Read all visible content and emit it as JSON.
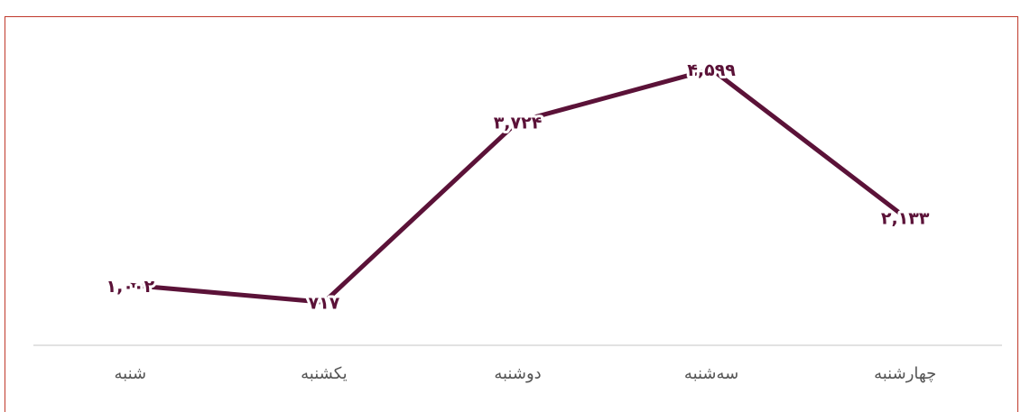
{
  "chart_data": {
    "type": "line",
    "categories": [
      "شنبه",
      "یکشنبه",
      "دوشنبه",
      "سه‌شنبه",
      "چهارشنبه"
    ],
    "series": [
      {
        "color": "#5b1238",
        "values": [
          1002,
          717,
          3724,
          4599,
          2133
        ],
        "value_labels": [
          "۱,۰۰۲",
          "۷۱۷",
          "۳,۷۲۴",
          "۴,۵۹۹",
          "۲,۱۳۳"
        ]
      }
    ],
    "ylim": [
      0,
      5000
    ]
  }
}
